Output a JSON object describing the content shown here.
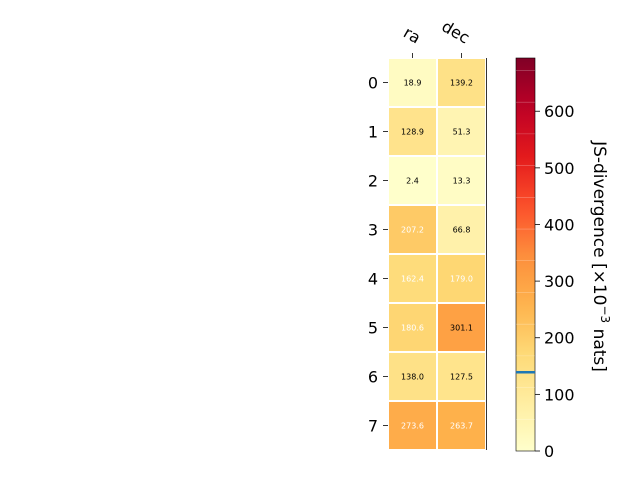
{
  "chart_data": {
    "type": "heatmap",
    "columns": [
      "ra",
      "dec"
    ],
    "rows": [
      "0",
      "1",
      "2",
      "3",
      "4",
      "5",
      "6",
      "7"
    ],
    "values": [
      [
        18.9,
        139.2
      ],
      [
        128.9,
        51.3
      ],
      [
        2.4,
        13.3
      ],
      [
        207.2,
        66.8
      ],
      [
        162.4,
        179.0
      ],
      [
        180.6,
        301.1
      ],
      [
        138.0,
        127.5
      ],
      [
        273.6,
        263.7
      ]
    ],
    "cell_labels": [
      [
        "18.9",
        "139.2"
      ],
      [
        "128.9",
        "51.3"
      ],
      [
        "2.4",
        "13.3"
      ],
      [
        "207.2",
        "66.8"
      ],
      [
        "162.4",
        "179.0"
      ],
      [
        "180.6",
        "301.1"
      ],
      [
        "138.0",
        "127.5"
      ],
      [
        "273.6",
        "263.7"
      ]
    ],
    "colorbar": {
      "label_main": "JS-divergence [×10",
      "label_exp": "−3",
      "label_tail": " nats]",
      "range": [
        0,
        694
      ],
      "ticks": [
        0,
        100,
        200,
        300,
        400,
        500,
        600
      ],
      "tick_labels": [
        "0",
        "100",
        "200",
        "300",
        "400",
        "500",
        "600"
      ],
      "marker_value": 139,
      "marker_color": "#1f77b4",
      "colormap": "YlOrRd"
    },
    "grid": false
  }
}
